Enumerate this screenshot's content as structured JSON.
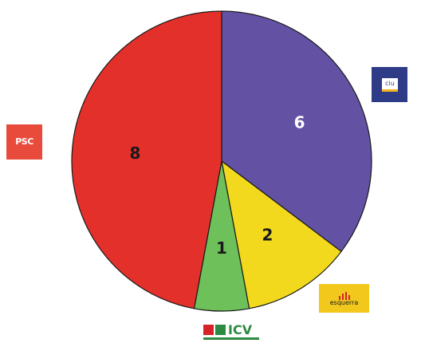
{
  "chart_data": {
    "type": "pie",
    "title": "",
    "total": 17,
    "slices": [
      {
        "name": "CiU",
        "value": 6,
        "label": "6",
        "color": "#6351a4",
        "label_color": "#ffffff",
        "logo_text": "ciu"
      },
      {
        "name": "ERC",
        "value": 2,
        "label": "2",
        "color": "#f2d91e",
        "label_color": "#1a1a1a",
        "logo_text": "esquerra"
      },
      {
        "name": "ICV",
        "value": 1,
        "label": "1",
        "color": "#6ec05a",
        "label_color": "#1a1a1a",
        "logo_text": "ICV"
      },
      {
        "name": "PSC",
        "value": 8,
        "label": "8",
        "color": "#e3302a",
        "label_color": "#1a1a1a",
        "logo_text": "PSC"
      }
    ],
    "start_angle_deg": 0,
    "direction": "clockwise",
    "legend": "party logos placed next to slices"
  }
}
